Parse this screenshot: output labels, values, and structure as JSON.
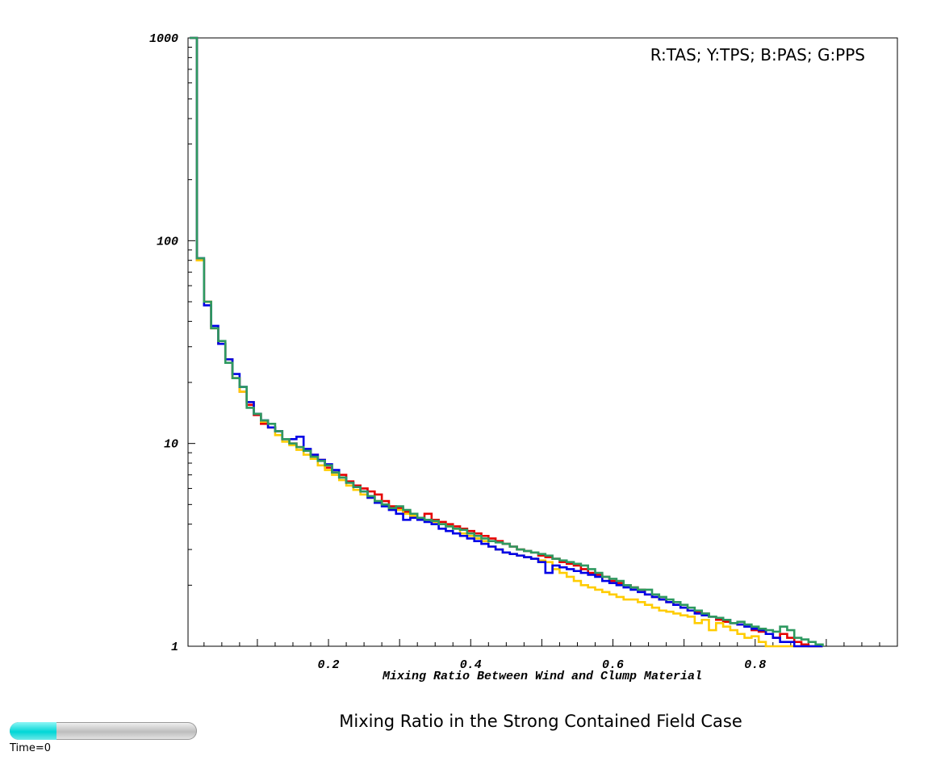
{
  "chart_data": {
    "type": "line",
    "title": "Mixing Ratio in the Strong Contained Field Case",
    "xlabel": "Mixing Ratio Between Wind and Clump Material",
    "ylabel": "",
    "legend_text": "R:TAS; Y:TPS; B:PAS; G:PPS",
    "legend_position": "top-right",
    "xlim": [
      0,
      1
    ],
    "ylim": [
      1,
      1000
    ],
    "yscale": "log",
    "grid": false,
    "x_tick_labels": [
      "0.2",
      "0.4",
      "0.6",
      "0.8"
    ],
    "y_tick_labels": [
      "1",
      "10",
      "100",
      "1000"
    ],
    "x": [
      0.01,
      0.02,
      0.03,
      0.04,
      0.05,
      0.06,
      0.07,
      0.08,
      0.09,
      0.1,
      0.11,
      0.12,
      0.13,
      0.14,
      0.15,
      0.16,
      0.17,
      0.18,
      0.19,
      0.2,
      0.21,
      0.22,
      0.23,
      0.24,
      0.25,
      0.26,
      0.27,
      0.28,
      0.29,
      0.3,
      0.31,
      0.32,
      0.33,
      0.34,
      0.35,
      0.36,
      0.37,
      0.38,
      0.39,
      0.4,
      0.41,
      0.42,
      0.43,
      0.44,
      0.45,
      0.46,
      0.47,
      0.48,
      0.49,
      0.5,
      0.51,
      0.52,
      0.53,
      0.54,
      0.55,
      0.56,
      0.57,
      0.58,
      0.59,
      0.6,
      0.61,
      0.62,
      0.63,
      0.64,
      0.65,
      0.66,
      0.67,
      0.68,
      0.69,
      0.7,
      0.71,
      0.72,
      0.73,
      0.74,
      0.75,
      0.76,
      0.77,
      0.78,
      0.79,
      0.8,
      0.81,
      0.82,
      0.83,
      0.84,
      0.85,
      0.86,
      0.87,
      0.88
    ],
    "series": [
      {
        "name": "TAS",
        "color": "#e60000",
        "values": [
          80,
          50,
          37,
          31,
          26,
          21,
          18,
          15.5,
          13.8,
          12.5,
          12.0,
          11.5,
          10.5,
          10.0,
          9.6,
          9.3,
          8.8,
          8.3,
          7.6,
          7.2,
          7.0,
          6.5,
          6.2,
          6.0,
          5.8,
          5.6,
          5.2,
          4.9,
          4.8,
          4.6,
          4.4,
          4.3,
          4.5,
          4.2,
          4.1,
          4.0,
          3.9,
          3.8,
          3.7,
          3.6,
          3.5,
          3.4,
          3.3,
          3.2,
          3.1,
          3.0,
          2.95,
          2.9,
          2.8,
          2.75,
          2.7,
          2.6,
          2.55,
          2.5,
          2.4,
          2.3,
          2.25,
          2.2,
          2.1,
          2.05,
          2.0,
          1.95,
          1.9,
          1.8,
          1.75,
          1.7,
          1.65,
          1.6,
          1.55,
          1.5,
          1.48,
          1.45,
          1.4,
          1.35,
          1.32,
          1.3,
          1.28,
          1.25,
          1.2,
          1.18,
          1.15,
          1.1,
          1.15,
          1.1,
          1.05,
          1.02,
          1.0,
          1.0
        ]
      },
      {
        "name": "TPS",
        "color": "#ffcc00",
        "values": [
          80,
          50,
          37,
          31,
          26,
          21,
          18,
          16,
          14,
          12.8,
          12,
          11,
          10.2,
          9.8,
          9.3,
          8.8,
          8.4,
          7.8,
          7.4,
          7.0,
          6.6,
          6.2,
          5.9,
          5.6,
          5.4,
          5.2,
          5.0,
          4.8,
          4.7,
          4.5,
          4.4,
          4.3,
          4.2,
          4.1,
          4.0,
          3.9,
          3.8,
          3.6,
          3.5,
          3.4,
          3.3,
          3.1,
          3.0,
          2.9,
          2.85,
          2.8,
          2.75,
          2.7,
          2.65,
          2.6,
          2.4,
          2.3,
          2.2,
          2.1,
          2.0,
          1.95,
          1.9,
          1.85,
          1.8,
          1.75,
          1.7,
          1.7,
          1.65,
          1.6,
          1.55,
          1.5,
          1.48,
          1.45,
          1.42,
          1.4,
          1.3,
          1.35,
          1.2,
          1.3,
          1.25,
          1.2,
          1.15,
          1.1,
          1.12,
          1.05,
          1.0,
          1.0,
          1.0,
          1.0,
          1.0,
          1.0,
          1.0,
          1.0
        ]
      },
      {
        "name": "PAS",
        "color": "#0000e6",
        "values": [
          82,
          48,
          38,
          31,
          26,
          22,
          19,
          16,
          14,
          13,
          12,
          11.5,
          10.5,
          10.5,
          10.8,
          9.4,
          8.8,
          8.3,
          7.9,
          7.4,
          6.8,
          6.4,
          6.1,
          5.8,
          5.4,
          5.1,
          4.9,
          4.7,
          4.5,
          4.2,
          4.3,
          4.2,
          4.1,
          4.0,
          3.8,
          3.7,
          3.6,
          3.5,
          3.4,
          3.3,
          3.2,
          3.1,
          3.0,
          2.9,
          2.85,
          2.8,
          2.75,
          2.7,
          2.6,
          2.3,
          2.5,
          2.45,
          2.4,
          2.35,
          2.3,
          2.25,
          2.2,
          2.1,
          2.05,
          2.0,
          1.95,
          1.9,
          1.85,
          1.8,
          1.75,
          1.7,
          1.65,
          1.6,
          1.55,
          1.5,
          1.45,
          1.42,
          1.4,
          1.38,
          1.35,
          1.3,
          1.28,
          1.25,
          1.22,
          1.2,
          1.15,
          1.1,
          1.05,
          1.05,
          1.0,
          1.0,
          1.0,
          1.0
        ]
      },
      {
        "name": "PPS",
        "color": "#2e9960",
        "values": [
          82,
          50,
          37,
          32,
          25,
          21,
          19,
          15,
          14,
          13,
          12.5,
          11.5,
          10.5,
          10.0,
          9.6,
          9.2,
          8.6,
          8.2,
          7.8,
          7.2,
          6.8,
          6.4,
          6.1,
          5.8,
          5.5,
          5.2,
          5.0,
          4.8,
          4.9,
          4.7,
          4.5,
          4.3,
          4.2,
          4.15,
          4.0,
          3.9,
          3.8,
          3.75,
          3.6,
          3.5,
          3.4,
          3.3,
          3.25,
          3.2,
          3.1,
          3.0,
          2.95,
          2.9,
          2.85,
          2.8,
          2.7,
          2.65,
          2.6,
          2.55,
          2.5,
          2.4,
          2.3,
          2.2,
          2.15,
          2.1,
          2.0,
          1.95,
          1.9,
          1.9,
          1.8,
          1.75,
          1.7,
          1.65,
          1.6,
          1.55,
          1.5,
          1.45,
          1.4,
          1.38,
          1.35,
          1.3,
          1.32,
          1.28,
          1.25,
          1.22,
          1.2,
          1.18,
          1.25,
          1.2,
          1.1,
          1.08,
          1.05,
          1.02
        ]
      }
    ],
    "first_bin_values": [
      1000,
      1000,
      1000,
      1000
    ]
  },
  "time_slider": {
    "label": "Time=0",
    "fraction": 0.25,
    "color": "#00dede"
  }
}
